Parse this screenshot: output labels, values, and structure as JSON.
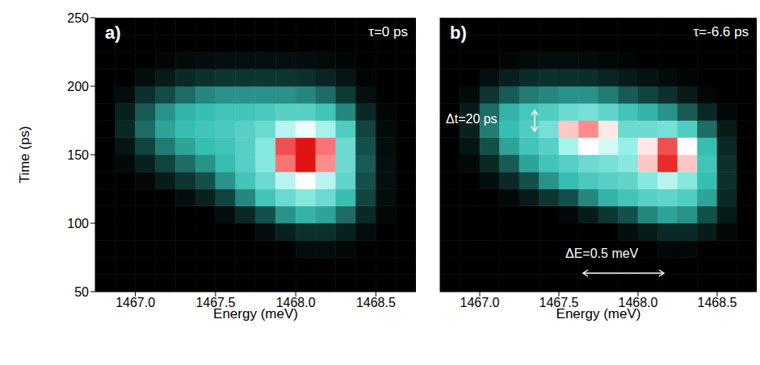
{
  "chart_data": [
    {
      "type": "heatmap",
      "title": "a)",
      "annotations": [
        "τ=0 ps"
      ],
      "xlabel": "Energy (meV)",
      "ylabel": "Time (ps)",
      "xlim": [
        1466.75,
        1468.75
      ],
      "xticks": [
        {
          "value": 1467,
          "label": "1467.0"
        },
        {
          "value": 1467.5,
          "label": "1467.5"
        },
        {
          "value": 1468,
          "label": "1468.0"
        },
        {
          "value": 1468.5,
          "label": "1468.5"
        }
      ],
      "ylim": [
        50,
        250
      ],
      "yticks": [
        50,
        100,
        150,
        200,
        250
      ],
      "zlim": [
        0,
        1
      ],
      "x_edges": [
        1466.75,
        1466.875,
        1467,
        1467.125,
        1467.25,
        1467.375,
        1467.5,
        1467.625,
        1467.75,
        1467.875,
        1468,
        1468.125,
        1468.25,
        1468.375,
        1468.5,
        1468.625,
        1468.75
      ],
      "y_edges": [
        50,
        62.5,
        75,
        87.5,
        100,
        112.5,
        125,
        137.5,
        150,
        162.5,
        175,
        187.5,
        200,
        212.5,
        225,
        237.5,
        250
      ],
      "cells": [
        [
          0,
          0,
          0,
          0,
          0,
          0,
          0,
          0,
          0,
          0,
          0,
          0,
          0,
          0,
          0,
          0
        ],
        [
          0,
          0,
          0,
          0,
          0,
          0,
          0,
          0,
          0,
          0,
          0,
          0,
          0,
          0,
          0,
          0
        ],
        [
          0,
          0,
          0,
          0,
          0,
          0,
          0,
          0,
          0,
          0,
          0.05,
          0.05,
          0.03,
          0,
          0,
          0
        ],
        [
          0,
          0,
          0,
          0,
          0,
          0,
          0,
          0,
          0.05,
          0.12,
          0.18,
          0.18,
          0.12,
          0.05,
          0,
          0
        ],
        [
          0,
          0,
          0,
          0,
          0,
          0,
          0.05,
          0.15,
          0.3,
          0.42,
          0.48,
          0.45,
          0.35,
          0.15,
          0.03,
          0
        ],
        [
          0,
          0,
          0,
          0,
          0.05,
          0.12,
          0.25,
          0.4,
          0.52,
          0.6,
          0.65,
          0.6,
          0.5,
          0.25,
          0.05,
          0
        ],
        [
          0,
          0,
          0.03,
          0.1,
          0.2,
          0.3,
          0.42,
          0.52,
          0.6,
          0.72,
          0.8,
          0.72,
          0.58,
          0.3,
          0.06,
          0
        ],
        [
          0,
          0.03,
          0.12,
          0.25,
          0.35,
          0.42,
          0.5,
          0.56,
          0.65,
          0.92,
          1.0,
          0.9,
          0.6,
          0.32,
          0.06,
          0
        ],
        [
          0,
          0.08,
          0.25,
          0.38,
          0.45,
          0.5,
          0.52,
          0.56,
          0.65,
          0.95,
          1.0,
          0.92,
          0.6,
          0.3,
          0.05,
          0
        ],
        [
          0,
          0.15,
          0.35,
          0.45,
          0.5,
          0.52,
          0.54,
          0.56,
          0.6,
          0.72,
          0.78,
          0.7,
          0.55,
          0.25,
          0.04,
          0
        ],
        [
          0,
          0.12,
          0.32,
          0.42,
          0.48,
          0.5,
          0.52,
          0.52,
          0.54,
          0.56,
          0.56,
          0.52,
          0.4,
          0.15,
          0.02,
          0
        ],
        [
          0,
          0.05,
          0.18,
          0.28,
          0.35,
          0.4,
          0.42,
          0.42,
          0.42,
          0.42,
          0.4,
          0.35,
          0.22,
          0.06,
          0,
          0
        ],
        [
          0,
          0,
          0.05,
          0.1,
          0.15,
          0.18,
          0.2,
          0.2,
          0.2,
          0.2,
          0.18,
          0.14,
          0.08,
          0.02,
          0,
          0
        ],
        [
          0,
          0,
          0,
          0.02,
          0.04,
          0.05,
          0.06,
          0.06,
          0.06,
          0.06,
          0.05,
          0.04,
          0.02,
          0,
          0,
          0
        ],
        [
          0,
          0,
          0,
          0,
          0,
          0,
          0,
          0,
          0,
          0,
          0,
          0,
          0,
          0,
          0,
          0
        ],
        [
          0,
          0,
          0,
          0,
          0,
          0,
          0,
          0,
          0,
          0,
          0,
          0,
          0,
          0,
          0,
          0
        ]
      ]
    },
    {
      "type": "heatmap",
      "title": "b)",
      "annotations": [
        "τ=-6.6 ps",
        "Δt=20 ps",
        "ΔE=0.5 meV"
      ],
      "xlabel": "Energy (meV)",
      "tick_labels": "x",
      "xlim": [
        1466.75,
        1468.75
      ],
      "xticks": [
        {
          "value": 1467,
          "label": "1467.0"
        },
        {
          "value": 1467.5,
          "label": "1467.5"
        },
        {
          "value": 1468,
          "label": "1468.0"
        },
        {
          "value": 1468.5,
          "label": "1468.5"
        }
      ],
      "ylim": [
        50,
        250
      ],
      "yticks": [
        50,
        100,
        150,
        200,
        250
      ],
      "zlim": [
        0,
        1
      ],
      "x_edges": [
        1466.75,
        1466.875,
        1467,
        1467.125,
        1467.25,
        1467.375,
        1467.5,
        1467.625,
        1467.75,
        1467.875,
        1468,
        1468.125,
        1468.25,
        1468.375,
        1468.5,
        1468.625,
        1468.75
      ],
      "y_edges": [
        50,
        62.5,
        75,
        87.5,
        100,
        112.5,
        125,
        137.5,
        150,
        162.5,
        175,
        187.5,
        200,
        212.5,
        225,
        237.5,
        250
      ],
      "cells": [
        [
          0,
          0,
          0,
          0,
          0,
          0,
          0,
          0,
          0,
          0,
          0,
          0,
          0,
          0,
          0,
          0
        ],
        [
          0,
          0,
          0,
          0,
          0,
          0,
          0,
          0,
          0,
          0,
          0,
          0,
          0,
          0,
          0,
          0
        ],
        [
          0,
          0,
          0,
          0,
          0,
          0,
          0,
          0,
          0,
          0,
          0,
          0.03,
          0.03,
          0,
          0,
          0
        ],
        [
          0,
          0,
          0,
          0,
          0,
          0,
          0,
          0,
          0,
          0.05,
          0.1,
          0.15,
          0.15,
          0.1,
          0.03,
          0
        ],
        [
          0,
          0,
          0,
          0,
          0,
          0,
          0.03,
          0.1,
          0.2,
          0.3,
          0.4,
          0.45,
          0.42,
          0.3,
          0.1,
          0
        ],
        [
          0,
          0,
          0,
          0.03,
          0.1,
          0.2,
          0.3,
          0.4,
          0.48,
          0.52,
          0.56,
          0.58,
          0.55,
          0.45,
          0.15,
          0
        ],
        [
          0,
          0,
          0.05,
          0.15,
          0.3,
          0.42,
          0.5,
          0.54,
          0.56,
          0.58,
          0.65,
          0.72,
          0.65,
          0.5,
          0.18,
          0
        ],
        [
          0,
          0.03,
          0.15,
          0.32,
          0.45,
          0.52,
          0.56,
          0.6,
          0.62,
          0.65,
          0.85,
          0.98,
          0.85,
          0.52,
          0.18,
          0
        ],
        [
          0,
          0.08,
          0.3,
          0.45,
          0.52,
          0.56,
          0.7,
          0.8,
          0.75,
          0.68,
          0.82,
          0.95,
          0.8,
          0.5,
          0.15,
          0
        ],
        [
          0,
          0.12,
          0.38,
          0.5,
          0.55,
          0.62,
          0.85,
          0.9,
          0.82,
          0.6,
          0.6,
          0.62,
          0.55,
          0.35,
          0.1,
          0
        ],
        [
          0,
          0.1,
          0.35,
          0.48,
          0.53,
          0.55,
          0.6,
          0.62,
          0.58,
          0.52,
          0.48,
          0.42,
          0.32,
          0.15,
          0.03,
          0
        ],
        [
          0,
          0.04,
          0.2,
          0.32,
          0.38,
          0.4,
          0.42,
          0.42,
          0.38,
          0.32,
          0.25,
          0.18,
          0.1,
          0.03,
          0,
          0
        ],
        [
          0,
          0,
          0.06,
          0.12,
          0.16,
          0.18,
          0.18,
          0.17,
          0.14,
          0.1,
          0.07,
          0.04,
          0.02,
          0,
          0,
          0
        ],
        [
          0,
          0,
          0,
          0.02,
          0.04,
          0.05,
          0.05,
          0.04,
          0.03,
          0.02,
          0,
          0,
          0,
          0,
          0,
          0
        ],
        [
          0,
          0,
          0,
          0,
          0,
          0,
          0,
          0,
          0,
          0,
          0,
          0,
          0,
          0,
          0,
          0
        ],
        [
          0,
          0,
          0,
          0,
          0,
          0,
          0,
          0,
          0,
          0,
          0,
          0,
          0,
          0,
          0,
          0
        ]
      ]
    }
  ]
}
